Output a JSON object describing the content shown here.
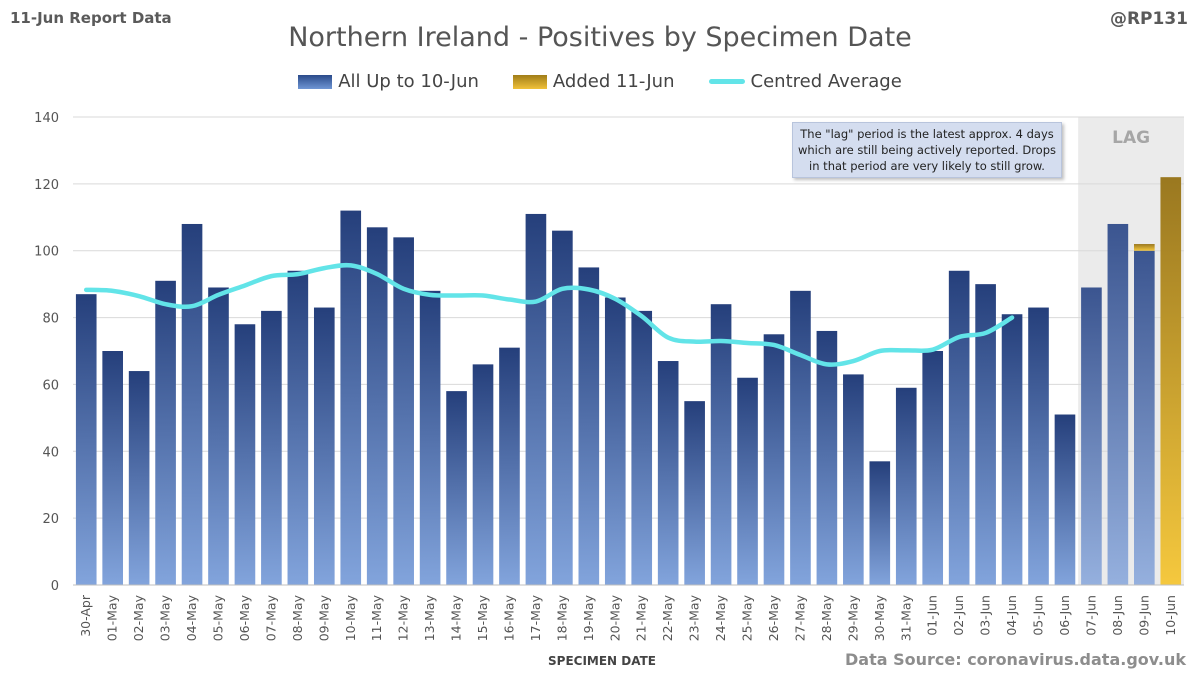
{
  "report_label": "11-Jun Report Data",
  "handle": "@RP131",
  "source": "Data Source: coronavirus.data.gov.uk",
  "note": "The \"lag\" period is the latest approx. 4 days which are still being actively reported. Drops in that period are very likely to still grow.",
  "colors": {
    "blue_dark": "#2a4a8a",
    "blue_light": "#7b9fd8",
    "gold_dark": "#9c7a1c",
    "gold_light": "#f3c63c",
    "average_line": "#62e4e8",
    "lag_shade": "#ebebeb"
  },
  "chart_data": {
    "type": "bar",
    "title": "Northern Ireland - Positives by Specimen Date",
    "xlabel": "SPECIMEN DATE",
    "ylabel": "",
    "ylim": [
      0,
      140
    ],
    "yticks": [
      0,
      20,
      40,
      60,
      80,
      100,
      120,
      140
    ],
    "grid": true,
    "legend_position": "top",
    "lag_label": "LAG",
    "lag_categories": [
      "07-Jun",
      "08-Jun",
      "09-Jun",
      "10-Jun"
    ],
    "categories": [
      "30-Apr",
      "01-May",
      "02-May",
      "03-May",
      "04-May",
      "05-May",
      "06-May",
      "07-May",
      "08-May",
      "09-May",
      "10-May",
      "11-May",
      "12-May",
      "13-May",
      "14-May",
      "15-May",
      "16-May",
      "17-May",
      "18-May",
      "19-May",
      "20-May",
      "21-May",
      "22-May",
      "23-May",
      "24-May",
      "25-May",
      "26-May",
      "27-May",
      "28-May",
      "29-May",
      "30-May",
      "31-May",
      "01-Jun",
      "02-Jun",
      "03-Jun",
      "04-Jun",
      "05-Jun",
      "06-Jun",
      "07-Jun",
      "08-Jun",
      "09-Jun",
      "10-Jun"
    ],
    "series": [
      {
        "name": "All Up to 10-Jun",
        "type": "bar",
        "values": [
          87,
          70,
          64,
          91,
          108,
          89,
          78,
          82,
          94,
          83,
          112,
          107,
          104,
          88,
          58,
          66,
          71,
          111,
          106,
          95,
          86,
          82,
          67,
          55,
          84,
          62,
          75,
          88,
          76,
          63,
          37,
          59,
          70,
          94,
          90,
          81,
          83,
          51,
          89,
          108,
          100,
          0
        ]
      },
      {
        "name": "Added 11-Jun",
        "type": "bar",
        "values": [
          0,
          0,
          0,
          0,
          0,
          0,
          0,
          0,
          0,
          0,
          0,
          0,
          0,
          0,
          0,
          0,
          0,
          0,
          0,
          0,
          0,
          0,
          0,
          0,
          0,
          0,
          0,
          0,
          0,
          0,
          0,
          0,
          0,
          0,
          0,
          0,
          0,
          0,
          0,
          0,
          2,
          122
        ]
      },
      {
        "name": "Centred Average",
        "type": "line",
        "values": [
          88.3,
          88.0,
          86.4,
          84.0,
          83.4,
          86.8,
          89.6,
          92.4,
          93.0,
          94.8,
          95.6,
          93.0,
          88.6,
          86.8,
          86.6,
          86.6,
          85.4,
          84.8,
          88.6,
          88.4,
          85.6,
          80.4,
          74.0,
          72.8,
          73.0,
          72.4,
          71.8,
          68.8,
          66.0,
          67.0,
          70.0,
          70.2,
          70.4,
          74.2,
          75.4,
          80.0,
          null,
          null,
          null,
          null,
          null,
          null
        ]
      }
    ]
  }
}
